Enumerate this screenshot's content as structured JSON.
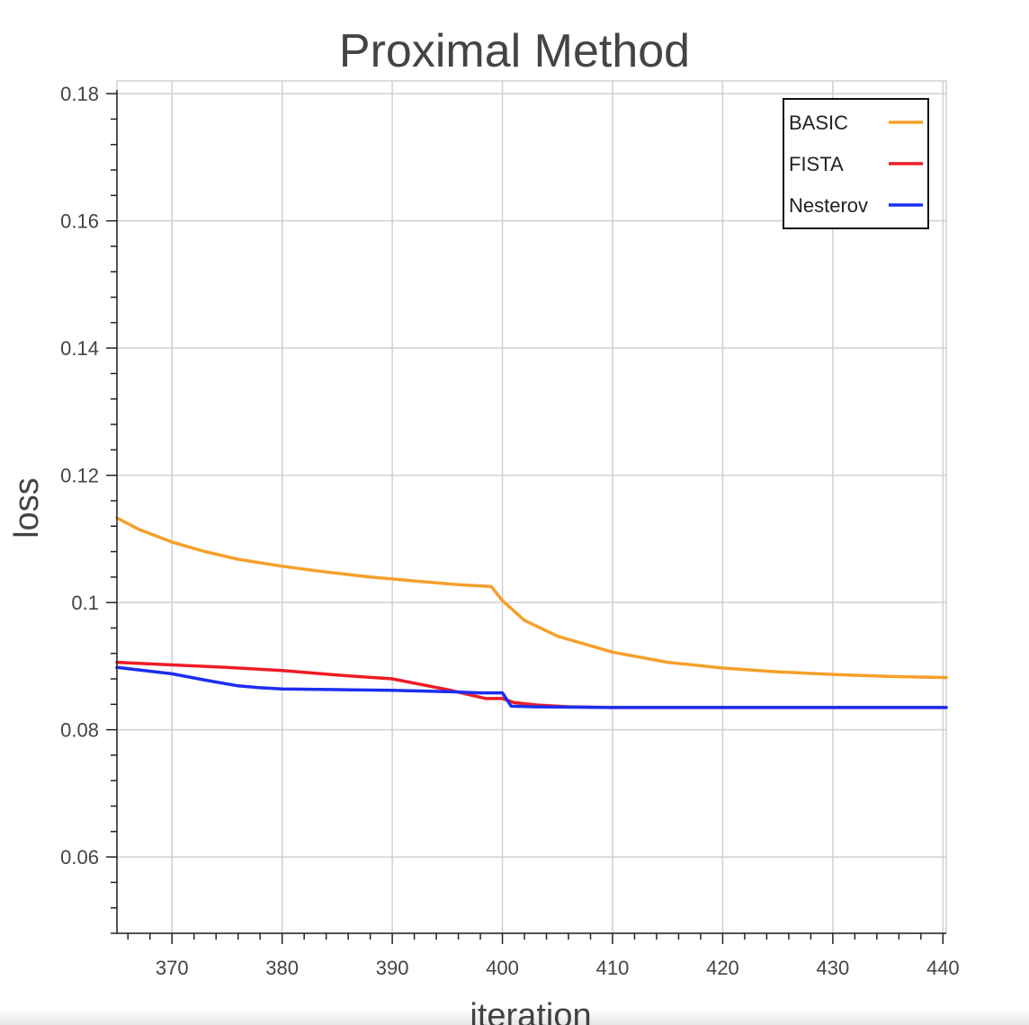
{
  "chart_data": {
    "type": "line",
    "title": "Proximal Method",
    "xlabel": "iteration",
    "ylabel": "loss",
    "xlim": [
      365,
      440.3
    ],
    "ylim": [
      0.048,
      0.182
    ],
    "xticks": [
      370,
      380,
      390,
      400,
      410,
      420,
      430,
      440
    ],
    "xtick_labels": [
      "370",
      "380",
      "390",
      "400",
      "410",
      "420",
      "430",
      "440"
    ],
    "yticks": [
      0.06,
      0.08,
      0.1,
      0.12,
      0.14,
      0.16,
      0.18
    ],
    "ytick_labels": [
      "0.06",
      "0.08",
      "0.1",
      "0.12",
      "0.14",
      "0.16",
      "0.18"
    ],
    "x_minor_step": 2,
    "y_minor_step": 0.004,
    "grid": true,
    "legend_position": "top-right",
    "series": [
      {
        "name": "BASIC",
        "color": "#f5a02a",
        "x": [
          365,
          367,
          370,
          373,
          376,
          380,
          384,
          388,
          392,
          396,
          399,
          400,
          402,
          405,
          410,
          415,
          420,
          425,
          430,
          435,
          440.3
        ],
        "y": [
          0.1133,
          0.1115,
          0.1095,
          0.108,
          0.1068,
          0.1057,
          0.1048,
          0.104,
          0.1034,
          0.1028,
          0.1025,
          0.1003,
          0.0972,
          0.0947,
          0.0922,
          0.0906,
          0.0897,
          0.0891,
          0.0887,
          0.0884,
          0.0882
        ]
      },
      {
        "name": "FISTA",
        "color": "#ee1c25",
        "x": [
          365,
          370,
          375,
          380,
          385,
          390,
          395,
          398.5,
          400,
          401,
          403,
          406,
          410,
          420,
          430,
          440.3
        ],
        "y": [
          0.0906,
          0.0902,
          0.0898,
          0.0893,
          0.0886,
          0.088,
          0.0863,
          0.0849,
          0.0849,
          0.0843,
          0.0839,
          0.0836,
          0.0835,
          0.0835,
          0.0835,
          0.0835
        ]
      },
      {
        "name": "Nesterov",
        "color": "#1c2ef0",
        "x": [
          365,
          370,
          373,
          376,
          378,
          380,
          385,
          390,
          395,
          398,
          400,
          400.8,
          403,
          410,
          420,
          430,
          440.3
        ],
        "y": [
          0.0898,
          0.0888,
          0.0878,
          0.0869,
          0.0866,
          0.0864,
          0.0863,
          0.0862,
          0.086,
          0.0858,
          0.0858,
          0.0837,
          0.0836,
          0.0835,
          0.0835,
          0.0835,
          0.0835
        ]
      }
    ]
  }
}
